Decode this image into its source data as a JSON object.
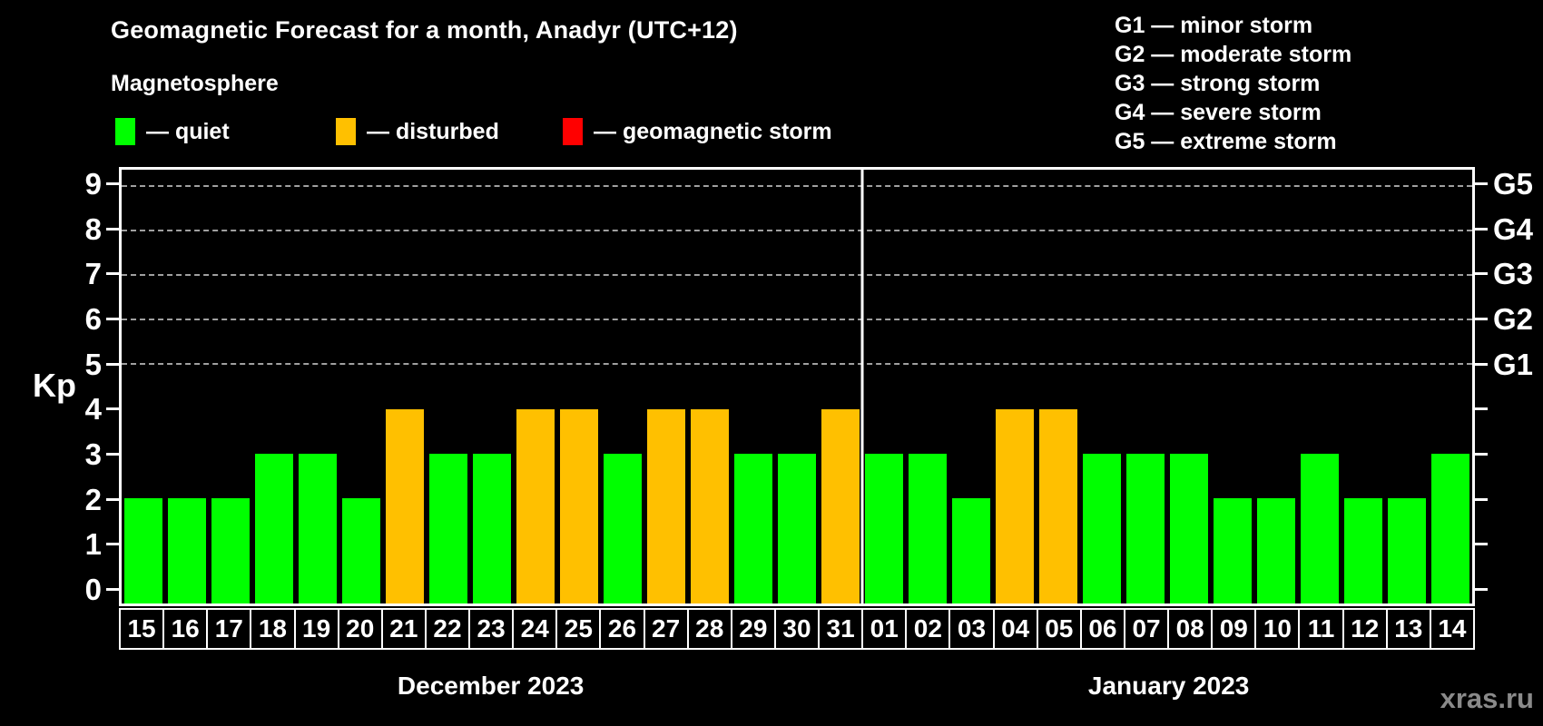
{
  "title": "Geomagnetic Forecast for a month, Anadyr (UTC+12)",
  "subtitle": "Magnetosphere",
  "legend": {
    "items": [
      {
        "state": "quiet",
        "label": "— quiet"
      },
      {
        "state": "disturbed",
        "label": "— disturbed"
      },
      {
        "state": "storm",
        "label": "— geomagnetic storm"
      }
    ]
  },
  "g_scale_legend": [
    "G1 — minor storm",
    "G2 — moderate storm",
    "G3 — strong storm",
    "G4 — severe storm",
    "G5 — extreme storm"
  ],
  "colors": {
    "background": "#000000",
    "quiet": "#00ff00",
    "disturbed": "#ffc000",
    "storm": "#ff0000",
    "axis": "#ffffff",
    "grid": "#a0a0a0",
    "watermark": "#8a8a8a"
  },
  "y_axis": {
    "label": "Kp",
    "ticks": [
      0,
      1,
      2,
      3,
      4,
      5,
      6,
      7,
      8,
      9
    ]
  },
  "right_axis": {
    "labels": [
      {
        "text": "G1",
        "value": 5
      },
      {
        "text": "G2",
        "value": 6
      },
      {
        "text": "G3",
        "value": 7
      },
      {
        "text": "G4",
        "value": 8
      },
      {
        "text": "G5",
        "value": 9
      }
    ]
  },
  "gridlines": [
    5,
    6,
    7,
    8,
    9
  ],
  "chart_data": {
    "type": "bar",
    "title": "Geomagnetic Forecast for a month, Anadyr (UTC+12)",
    "ylabel": "Kp",
    "ylim": [
      0,
      9
    ],
    "grid": "dashed horizontal at Kp 5-9 only",
    "legend_position": "top-left",
    "categories": [
      "15",
      "16",
      "17",
      "18",
      "19",
      "20",
      "21",
      "22",
      "23",
      "24",
      "25",
      "26",
      "27",
      "28",
      "29",
      "30",
      "31",
      "01",
      "02",
      "03",
      "04",
      "05",
      "06",
      "07",
      "08",
      "09",
      "10",
      "11",
      "12",
      "13",
      "14"
    ],
    "values": [
      2,
      2,
      2,
      3,
      3,
      2,
      4,
      3,
      3,
      4,
      4,
      3,
      4,
      4,
      3,
      3,
      4,
      3,
      3,
      2,
      4,
      4,
      3,
      3,
      3,
      2,
      2,
      3,
      2,
      2,
      3
    ],
    "states": [
      "quiet",
      "quiet",
      "quiet",
      "quiet",
      "quiet",
      "quiet",
      "disturbed",
      "quiet",
      "quiet",
      "disturbed",
      "disturbed",
      "quiet",
      "disturbed",
      "disturbed",
      "quiet",
      "quiet",
      "disturbed",
      "quiet",
      "quiet",
      "quiet",
      "disturbed",
      "disturbed",
      "quiet",
      "quiet",
      "quiet",
      "quiet",
      "quiet",
      "quiet",
      "quiet",
      "quiet",
      "quiet"
    ],
    "months": [
      {
        "label": "December 2023",
        "days": 17
      },
      {
        "label": "January 2023",
        "days": 14
      }
    ]
  },
  "watermark": "xras.ru"
}
